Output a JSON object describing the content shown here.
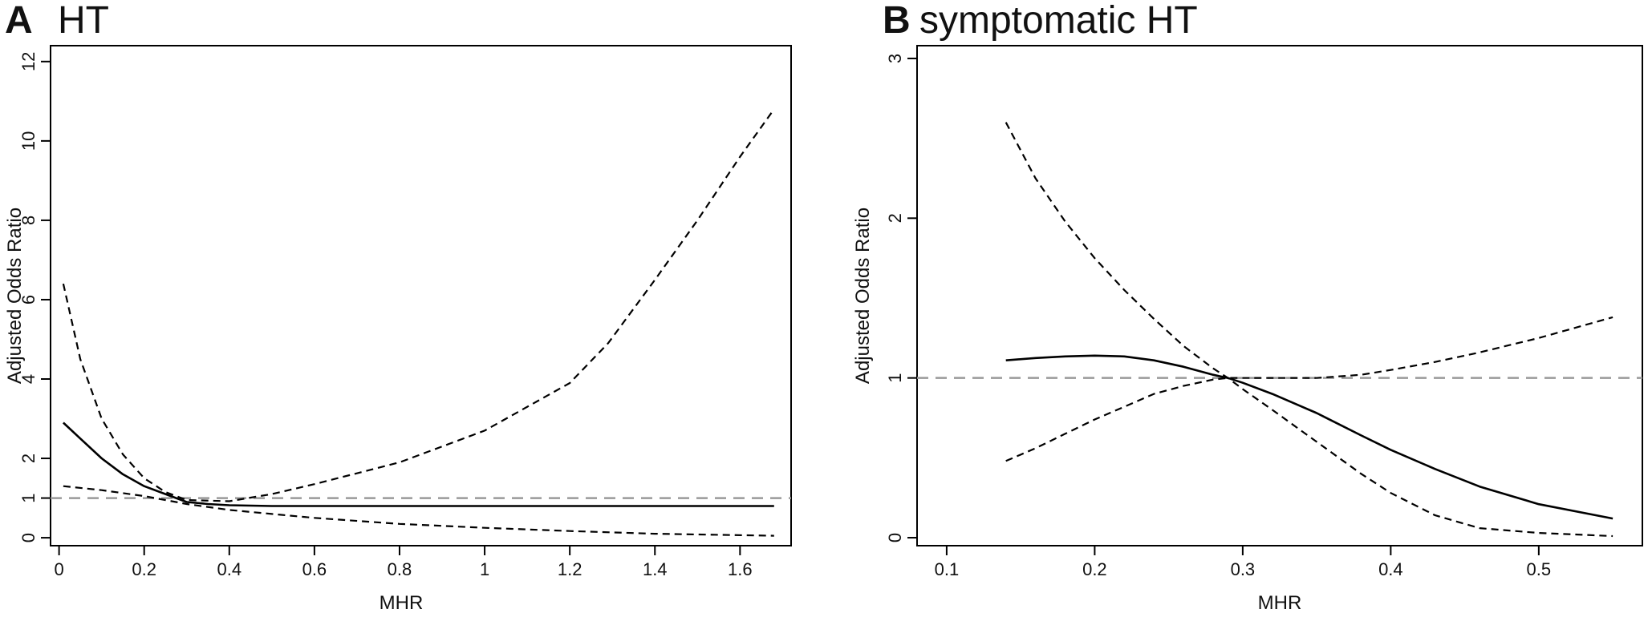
{
  "chart_data": [
    {
      "panel_letter": "A",
      "title": "HT",
      "type": "line",
      "xlabel": "MHR",
      "ylabel": "Adjusted Odds Ratio",
      "xlim": [
        -0.02,
        1.72
      ],
      "ylim": [
        -0.2,
        12.4
      ],
      "xticks": [
        0,
        0.2,
        0.4,
        0.6,
        0.8,
        1,
        1.2,
        1.4,
        1.6
      ],
      "xtick_labels": [
        "0",
        "0.2",
        "0.4",
        "0.6",
        "0.8",
        "1",
        "1.2",
        "1.4",
        "1.6"
      ],
      "yticks": [
        0,
        1,
        2,
        4,
        6,
        8,
        10,
        12
      ],
      "ytick_labels": [
        "0",
        "1",
        "2",
        "4",
        "6",
        "8",
        "10",
        "12"
      ],
      "reference_line": 1,
      "series": [
        {
          "style": "solid",
          "x": [
            0.01,
            0.05,
            0.1,
            0.15,
            0.2,
            0.25,
            0.3,
            0.35,
            0.4,
            0.5,
            0.6,
            0.8,
            1.0,
            1.2,
            1.4,
            1.68
          ],
          "y": [
            2.9,
            2.5,
            2.0,
            1.6,
            1.3,
            1.1,
            0.9,
            0.85,
            0.82,
            0.8,
            0.8,
            0.8,
            0.8,
            0.8,
            0.8,
            0.8
          ]
        },
        {
          "style": "dashed",
          "x": [
            0.01,
            0.05,
            0.1,
            0.15,
            0.2,
            0.25,
            0.3,
            0.4,
            0.5,
            0.6,
            0.8,
            1.0,
            1.2,
            1.29,
            1.4,
            1.5,
            1.6,
            1.68
          ],
          "y": [
            6.4,
            4.5,
            3.0,
            2.1,
            1.5,
            1.15,
            0.95,
            0.92,
            1.1,
            1.35,
            1.9,
            2.7,
            3.9,
            4.9,
            6.5,
            8.0,
            9.6,
            10.8
          ]
        },
        {
          "style": "dashed",
          "x": [
            0.01,
            0.1,
            0.2,
            0.3,
            0.4,
            0.5,
            0.6,
            0.8,
            1.0,
            1.2,
            1.4,
            1.68
          ],
          "y": [
            1.3,
            1.2,
            1.05,
            0.85,
            0.7,
            0.6,
            0.5,
            0.35,
            0.25,
            0.17,
            0.1,
            0.05
          ]
        }
      ]
    },
    {
      "panel_letter": "B",
      "title": "symptomatic HT",
      "type": "line",
      "xlabel": "MHR",
      "ylabel": "Adjusted Odds Ratio",
      "xlim": [
        0.08,
        0.57
      ],
      "ylim": [
        -0.05,
        3.08
      ],
      "xticks": [
        0.1,
        0.2,
        0.3,
        0.4,
        0.5
      ],
      "xtick_labels": [
        "0.1",
        "0.2",
        "0.3",
        "0.4",
        "0.5"
      ],
      "yticks": [
        0,
        1,
        2,
        3
      ],
      "ytick_labels": [
        "0",
        "1",
        "2",
        "3"
      ],
      "reference_line": 1,
      "series": [
        {
          "style": "solid",
          "x": [
            0.14,
            0.16,
            0.18,
            0.2,
            0.22,
            0.24,
            0.26,
            0.28,
            0.29,
            0.3,
            0.32,
            0.35,
            0.38,
            0.4,
            0.43,
            0.46,
            0.5,
            0.55
          ],
          "y": [
            1.11,
            1.125,
            1.135,
            1.14,
            1.135,
            1.11,
            1.07,
            1.02,
            1.0,
            0.97,
            0.9,
            0.78,
            0.64,
            0.55,
            0.43,
            0.32,
            0.21,
            0.12
          ]
        },
        {
          "style": "dashed",
          "x": [
            0.14,
            0.16,
            0.18,
            0.2,
            0.22,
            0.24,
            0.26,
            0.28,
            0.29,
            0.3,
            0.32,
            0.35,
            0.38,
            0.4,
            0.43,
            0.46,
            0.5,
            0.55
          ],
          "y": [
            2.6,
            2.25,
            1.98,
            1.75,
            1.55,
            1.37,
            1.2,
            1.06,
            1.0,
            0.93,
            0.8,
            0.6,
            0.4,
            0.28,
            0.14,
            0.06,
            0.03,
            0.01
          ]
        },
        {
          "style": "dashed",
          "x": [
            0.14,
            0.16,
            0.18,
            0.2,
            0.22,
            0.24,
            0.26,
            0.28,
            0.29,
            0.3,
            0.32,
            0.35,
            0.38,
            0.4,
            0.43,
            0.46,
            0.5,
            0.55
          ],
          "y": [
            0.48,
            0.56,
            0.65,
            0.74,
            0.82,
            0.9,
            0.95,
            0.99,
            1.0,
            1.0,
            1.0,
            1.0,
            1.02,
            1.05,
            1.1,
            1.16,
            1.25,
            1.38
          ]
        }
      ]
    }
  ]
}
